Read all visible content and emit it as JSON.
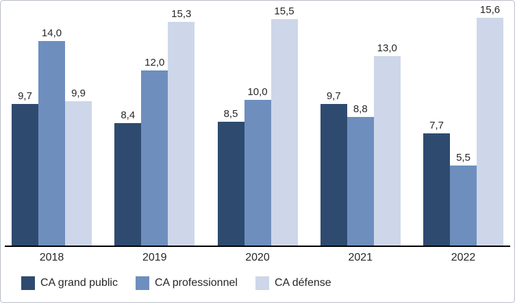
{
  "chart_data": {
    "type": "bar",
    "title": "",
    "xlabel": "",
    "ylabel": "",
    "categories": [
      "2018",
      "2019",
      "2020",
      "2021",
      "2022"
    ],
    "series": [
      {
        "name": "CA grand public",
        "color": "#2E4B6F",
        "values": [
          9.7,
          8.4,
          8.5,
          9.7,
          7.7
        ]
      },
      {
        "name": "CA professionnel",
        "color": "#6E8EBE",
        "values": [
          14.0,
          12.0,
          10.0,
          8.8,
          5.5
        ]
      },
      {
        "name": "CA défense",
        "color": "#CDD7E9",
        "values": [
          9.9,
          15.3,
          15.5,
          13.0,
          15.6
        ]
      }
    ],
    "data_labels": {
      "decimal_separator": ",",
      "decimals": 1
    },
    "ylim": [
      0,
      16.4
    ],
    "grid": false,
    "legend_position": "bottom",
    "axis_line_color": "#000000",
    "label_color": "#262626"
  }
}
